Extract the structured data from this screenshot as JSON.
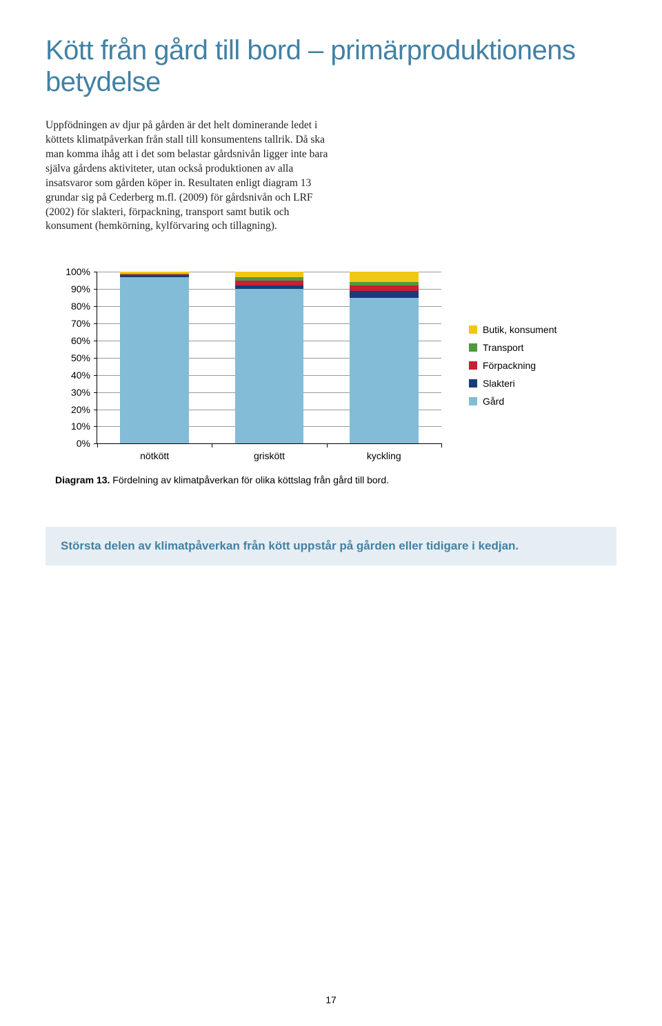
{
  "title": "Kött från gård till bord – primärproduktionens betydelse",
  "body": "Uppfödningen av djur på gården är det helt dominerande ledet i köttets klimatpåverkan från stall till konsumentens tallrik. Då ska man komma ihåg att i det som belastar gårdsnivån ligger inte bara själva gårdens aktiviteter, utan också produktionen av alla insatsvaror som gården köper in. Resultaten enligt diagram 13 grundar sig på Cederberg m.fl. (2009) för gårdsnivån och LRF (2002) för slakteri, förpackning, transport samt butik och konsument (hemkörning, kylförvaring och tillagning).",
  "chart": {
    "type": "stacked-bar",
    "ylim": [
      0,
      100
    ],
    "ytick_step": 10,
    "ytick_suffix": "%",
    "categories": [
      "nötkött",
      "griskött",
      "kyckling"
    ],
    "series_order": [
      "gard",
      "slakteri",
      "forpackning",
      "transport",
      "butik"
    ],
    "series": {
      "butik": {
        "label": "Butik, konsument",
        "color": "#f2c714"
      },
      "transport": {
        "label": "Transport",
        "color": "#4f9a3d"
      },
      "forpackning": {
        "label": "Förpackning",
        "color": "#c62033"
      },
      "slakteri": {
        "label": "Slakteri",
        "color": "#163d7a"
      },
      "gard": {
        "label": "Gård",
        "color": "#82bcd6"
      }
    },
    "legend_order": [
      "butik",
      "transport",
      "forpackning",
      "slakteri",
      "gard"
    ],
    "data": {
      "nötkött": {
        "gard": 97,
        "slakteri": 1,
        "forpackning": 0.5,
        "transport": 0.5,
        "butik": 1
      },
      "griskött": {
        "gard": 90,
        "slakteri": 2,
        "forpackning": 3,
        "transport": 2,
        "butik": 3
      },
      "kyckling": {
        "gard": 85,
        "slakteri": 4,
        "forpackning": 3,
        "transport": 2,
        "butik": 6
      }
    },
    "bar_width_pct": 20,
    "background": "#ffffff",
    "grid_color": "#999999"
  },
  "caption_prefix": "Diagram 13.",
  "caption_rest": " Fördelning av klimatpåverkan för olika köttslag från gård till bord.",
  "callout": "Största delen av klimatpåverkan från kött uppstår på gården eller tidigare i kedjan.",
  "page_number": "17"
}
